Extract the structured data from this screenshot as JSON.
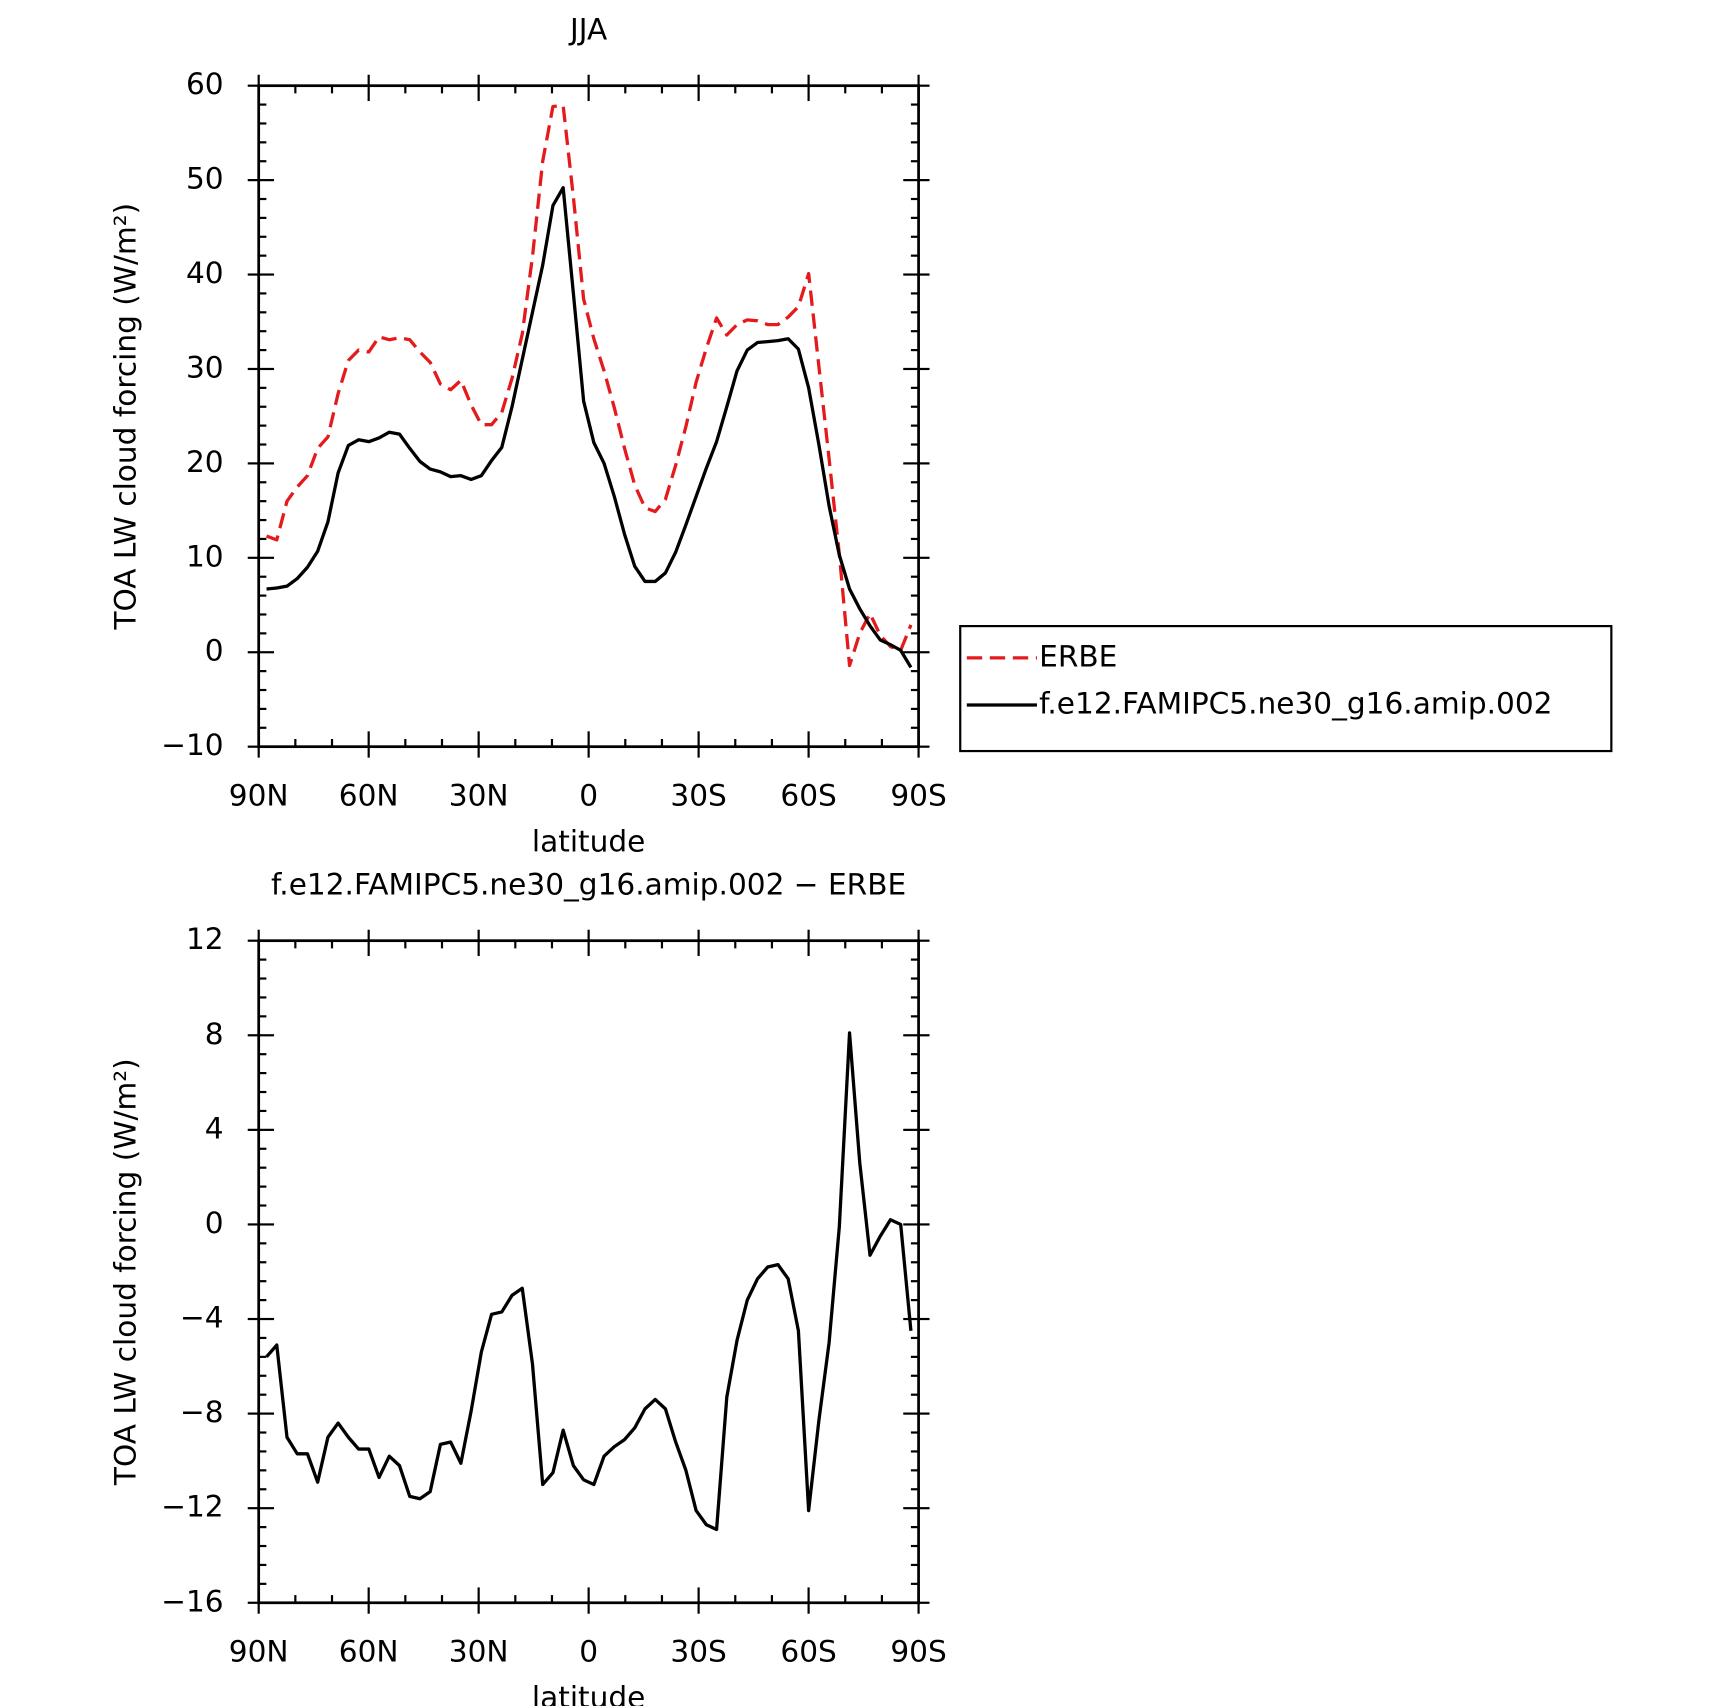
{
  "chart_data": [
    {
      "type": "line",
      "title": "JJA",
      "x_label": "latitude",
      "y_label": "TOA LW cloud forcing (W/m²)",
      "x": [
        87.86,
        85.07,
        82.28,
        79.49,
        76.7,
        73.91,
        71.12,
        68.33,
        65.54,
        62.75,
        59.96,
        57.17,
        54.38,
        51.59,
        48.8,
        46.01,
        43.22,
        40.43,
        37.64,
        34.85,
        32.06,
        29.27,
        26.48,
        23.69,
        20.9,
        18.11,
        15.32,
        12.53,
        9.74,
        6.95,
        4.16,
        1.37,
        -1.42,
        -4.21,
        -7.0,
        -9.79,
        -12.58,
        -15.37,
        -18.16,
        -20.95,
        -23.74,
        -26.53,
        -29.32,
        -32.11,
        -34.9,
        -37.69,
        -40.48,
        -43.27,
        -46.06,
        -48.85,
        -51.64,
        -54.43,
        -57.22,
        -60.01,
        -62.8,
        -65.59,
        -68.38,
        -71.17,
        -73.96,
        -76.75,
        -79.54,
        -82.33,
        -85.12,
        -87.91
      ],
      "xlim": [
        90,
        -90
      ],
      "xticks": [
        {
          "value": 90,
          "label": "90N"
        },
        {
          "value": 60,
          "label": "60N"
        },
        {
          "value": 30,
          "label": "30N"
        },
        0,
        {
          "value": -30,
          "label": "30S"
        },
        {
          "value": -60,
          "label": "60S"
        },
        {
          "value": -90,
          "label": "90S"
        }
      ],
      "ylim": [
        -10,
        60
      ],
      "yticks": [
        {
          "value": -10,
          "label": "−10"
        },
        0,
        10,
        20,
        30,
        40,
        50,
        60
      ],
      "legend": "right",
      "series": [
        {
          "name": "ERBE",
          "color": "#e41a1c",
          "linestyle": "dashed",
          "values": [
            12.3,
            11.9,
            16.0,
            17.5,
            18.7,
            21.6,
            22.8,
            27.4,
            30.9,
            32.0,
            31.8,
            33.4,
            33.1,
            33.3,
            33.1,
            31.8,
            30.7,
            28.4,
            27.8,
            28.8,
            26.2,
            24.1,
            24.1,
            25.4,
            29.0,
            33.7,
            41.9,
            52.0,
            57.8,
            57.9,
            48.2,
            37.4,
            33.2,
            29.8,
            25.9,
            21.6,
            17.7,
            15.3,
            14.9,
            16.2,
            19.8,
            23.9,
            28.6,
            32.2,
            35.4,
            33.6,
            34.7,
            35.2,
            35.1,
            34.7,
            34.7,
            35.5,
            36.6,
            40.1,
            30.3,
            20.5,
            10.4,
            -1.4,
            2.0,
            4.1,
            1.8,
            0.6,
            0.2,
            2.9
          ]
        },
        {
          "name": "f.e12.FAMIPC5.ne30_g16.amip.002",
          "color": "#000000",
          "linestyle": "solid",
          "values": [
            6.7,
            6.8,
            7.0,
            7.8,
            9.0,
            10.7,
            13.8,
            19.0,
            21.9,
            22.5,
            22.3,
            22.7,
            23.3,
            23.1,
            21.6,
            20.2,
            19.4,
            19.1,
            18.6,
            18.7,
            18.3,
            18.7,
            20.3,
            21.7,
            26.0,
            31.0,
            36.0,
            41.0,
            47.3,
            49.2,
            38.0,
            26.6,
            22.2,
            20.0,
            16.5,
            12.5,
            9.1,
            7.5,
            7.5,
            8.4,
            10.6,
            13.5,
            16.5,
            19.5,
            22.3,
            26.0,
            29.8,
            32.0,
            32.8,
            32.9,
            33.0,
            33.2,
            32.1,
            28.0,
            22.0,
            15.5,
            10.3,
            6.7,
            4.6,
            2.8,
            1.3,
            0.8,
            0.2,
            -1.6
          ]
        }
      ]
    },
    {
      "type": "line",
      "title": "f.e12.FAMIPC5.ne30_g16.amip.002 − ERBE",
      "x_label": "latitude",
      "y_label": "TOA LW cloud forcing (W/m²)",
      "x": [
        87.86,
        85.07,
        82.28,
        79.49,
        76.7,
        73.91,
        71.12,
        68.33,
        65.54,
        62.75,
        59.96,
        57.17,
        54.38,
        51.59,
        48.8,
        46.01,
        43.22,
        40.43,
        37.64,
        34.85,
        32.06,
        29.27,
        26.48,
        23.69,
        20.9,
        18.11,
        15.32,
        12.53,
        9.74,
        6.95,
        4.16,
        1.37,
        -1.42,
        -4.21,
        -7.0,
        -9.79,
        -12.58,
        -15.37,
        -18.16,
        -20.95,
        -23.74,
        -26.53,
        -29.32,
        -32.11,
        -34.9,
        -37.69,
        -40.48,
        -43.27,
        -46.06,
        -48.85,
        -51.64,
        -54.43,
        -57.22,
        -60.01,
        -62.8,
        -65.59,
        -68.38,
        -71.17,
        -73.96,
        -76.75,
        -79.54,
        -82.33,
        -85.12,
        -87.91
      ],
      "xlim": [
        90,
        -90
      ],
      "xticks": [
        {
          "value": 90,
          "label": "90N"
        },
        {
          "value": 60,
          "label": "60N"
        },
        {
          "value": 30,
          "label": "30N"
        },
        0,
        {
          "value": -30,
          "label": "30S"
        },
        {
          "value": -60,
          "label": "60S"
        },
        {
          "value": -90,
          "label": "90S"
        }
      ],
      "ylim": [
        -16,
        12
      ],
      "yticks": [
        {
          "value": -16,
          "label": "−16"
        },
        {
          "value": -12,
          "label": "−12"
        },
        {
          "value": -8,
          "label": "−8"
        },
        {
          "value": -4,
          "label": "−4"
        },
        0,
        4,
        8,
        12
      ],
      "series": [
        {
          "color": "#000000",
          "linestyle": "solid",
          "values": [
            -5.6,
            -5.1,
            -9.0,
            -9.7,
            -9.7,
            -10.9,
            -9.0,
            -8.4,
            -9.0,
            -9.5,
            -9.5,
            -10.7,
            -9.8,
            -10.2,
            -11.5,
            -11.6,
            -11.3,
            -9.3,
            -9.2,
            -10.1,
            -7.9,
            -5.4,
            -3.8,
            -3.7,
            -3.0,
            -2.7,
            -5.9,
            -11.0,
            -10.5,
            -8.7,
            -10.2,
            -10.8,
            -11.0,
            -9.8,
            -9.4,
            -9.1,
            -8.6,
            -7.8,
            -7.4,
            -7.8,
            -9.2,
            -10.4,
            -12.1,
            -12.7,
            -12.9,
            -7.3,
            -4.9,
            -3.2,
            -2.3,
            -1.8,
            -1.7,
            -2.3,
            -4.5,
            -12.1,
            -8.3,
            -5.0,
            -0.1,
            8.1,
            2.6,
            -1.3,
            -0.5,
            0.2,
            0.0,
            -4.5
          ]
        }
      ]
    }
  ]
}
